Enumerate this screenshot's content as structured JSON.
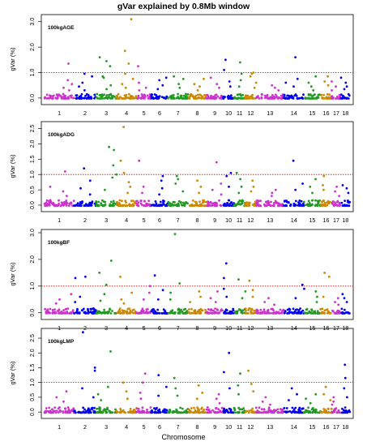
{
  "title": "gVar explained by 0.8Mb window",
  "x_label": "Chromosome",
  "colors": {
    "chromosomes": [
      "#cc33cc",
      "#0000ee",
      "#229922",
      "#cc8800"
    ],
    "threshold_line": "#cc0000",
    "axis": "#000000"
  },
  "chart_data": [
    {
      "type": "scatter",
      "panel_label": "100kgAGE",
      "ylabel": "gVar (%)",
      "xlabel": "",
      "yticks": [
        "0.0",
        "1.0",
        "2.0",
        "3.0"
      ],
      "ylim": [
        -0.1,
        3.15
      ],
      "threshold": 1.0,
      "chromosome_labels": [
        "1",
        "2",
        "3",
        "4",
        "5",
        "6",
        "7",
        "8",
        "9",
        "10",
        "11",
        "12",
        "13",
        "14",
        "15",
        "16",
        "17",
        "18"
      ],
      "peaks": [
        {
          "chr": "1",
          "values": [
            1.35,
            0.7,
            0.55,
            0.4,
            0.3
          ]
        },
        {
          "chr": "2",
          "values": [
            0.95,
            0.85,
            0.6,
            0.45,
            0.3
          ]
        },
        {
          "chr": "3",
          "values": [
            1.6,
            1.45,
            1.25,
            0.85,
            0.8,
            0.5,
            0.35
          ]
        },
        {
          "chr": "4",
          "values": [
            3.1,
            1.85,
            1.35,
            0.95,
            0.75,
            0.55,
            0.4
          ]
        },
        {
          "chr": "5",
          "values": [
            1.25,
            0.6,
            0.4,
            0.3
          ]
        },
        {
          "chr": "6",
          "values": [
            0.8,
            0.7,
            0.5,
            0.35
          ]
        },
        {
          "chr": "7",
          "values": [
            0.85,
            0.75,
            0.55,
            0.4
          ]
        },
        {
          "chr": "8",
          "values": [
            0.75,
            0.55,
            0.45,
            0.3
          ]
        },
        {
          "chr": "9",
          "values": [
            0.8,
            0.55,
            0.4
          ]
        },
        {
          "chr": "10",
          "values": [
            1.5,
            1.1,
            0.65,
            0.45
          ]
        },
        {
          "chr": "11",
          "values": [
            1.4,
            0.95,
            0.7,
            0.45
          ]
        },
        {
          "chr": "12",
          "values": [
            1.0,
            0.95,
            0.85,
            0.6,
            0.4
          ]
        },
        {
          "chr": "13",
          "values": [
            0.5,
            0.4,
            0.3
          ]
        },
        {
          "chr": "14",
          "values": [
            1.6,
            0.75,
            0.6,
            0.45
          ]
        },
        {
          "chr": "15",
          "values": [
            0.85,
            0.6,
            0.45,
            0.3
          ]
        },
        {
          "chr": "16",
          "values": [
            0.85,
            0.65,
            0.5
          ]
        },
        {
          "chr": "17",
          "values": [
            0.65,
            0.45,
            0.3
          ]
        },
        {
          "chr": "18",
          "values": [
            0.8,
            0.6,
            0.45,
            0.35
          ]
        }
      ]
    },
    {
      "type": "scatter",
      "panel_label": "100kgADG",
      "ylabel": "gVar (%)",
      "xlabel": "",
      "yticks": [
        "0.0",
        "0.5",
        "1.0",
        "1.5",
        "2.0",
        "2.5"
      ],
      "ylim": [
        -0.08,
        2.62
      ],
      "threshold": 1.0,
      "chromosome_labels": [
        "1",
        "2",
        "3",
        "4",
        "5",
        "6",
        "7",
        "8",
        "9",
        "10",
        "11",
        "12",
        "13",
        "14",
        "15",
        "16",
        "17",
        "18"
      ],
      "peaks": [
        {
          "chr": "1",
          "values": [
            1.1,
            0.6,
            0.45,
            0.3
          ]
        },
        {
          "chr": "2",
          "values": [
            1.2,
            0.8,
            0.55,
            0.35
          ]
        },
        {
          "chr": "3",
          "values": [
            1.9,
            1.8,
            1.3,
            1.0,
            0.9,
            0.5
          ]
        },
        {
          "chr": "4",
          "values": [
            2.55,
            1.45,
            1.05,
            0.75,
            0.6,
            0.4
          ]
        },
        {
          "chr": "5",
          "values": [
            1.45,
            0.6,
            0.4
          ]
        },
        {
          "chr": "6",
          "values": [
            0.95,
            0.8,
            0.55,
            0.35
          ]
        },
        {
          "chr": "7",
          "values": [
            0.95,
            0.85,
            0.7,
            0.45
          ]
        },
        {
          "chr": "8",
          "values": [
            0.8,
            0.6,
            0.4
          ]
        },
        {
          "chr": "9",
          "values": [
            1.4,
            0.7,
            0.5,
            0.35
          ]
        },
        {
          "chr": "10",
          "values": [
            1.05,
            0.95,
            0.6
          ]
        },
        {
          "chr": "11",
          "values": [
            1.05,
            0.85,
            0.6,
            0.4
          ]
        },
        {
          "chr": "12",
          "values": [
            0.8,
            0.6,
            0.45
          ]
        },
        {
          "chr": "13",
          "values": [
            0.5,
            0.4,
            0.3
          ]
        },
        {
          "chr": "14",
          "values": [
            1.45,
            0.7,
            0.5
          ]
        },
        {
          "chr": "15",
          "values": [
            0.85,
            0.6,
            0.4
          ]
        },
        {
          "chr": "16",
          "values": [
            0.95,
            0.65,
            0.5
          ]
        },
        {
          "chr": "17",
          "values": [
            0.6,
            0.45,
            0.3
          ]
        },
        {
          "chr": "18",
          "values": [
            0.65,
            0.55,
            0.4
          ]
        }
      ]
    },
    {
      "type": "scatter",
      "panel_label": "100kgBF",
      "ylabel": "gVar (%)",
      "xlabel": "",
      "yticks": [
        "0.0",
        "1.0",
        "2.0",
        "3.0"
      ],
      "ylim": [
        -0.1,
        3.0
      ],
      "threshold": 1.0,
      "chromosome_labels": [
        "1",
        "2",
        "3",
        "4",
        "5",
        "6",
        "7",
        "8",
        "9",
        "10",
        "11",
        "12",
        "13",
        "14",
        "15",
        "16",
        "17",
        "18"
      ],
      "peaks": [
        {
          "chr": "1",
          "values": [
            0.7,
            0.5,
            0.35
          ]
        },
        {
          "chr": "2",
          "values": [
            1.35,
            1.3,
            0.6,
            0.4
          ]
        },
        {
          "chr": "3",
          "values": [
            1.95,
            1.5,
            1.05,
            0.7,
            0.45
          ]
        },
        {
          "chr": "4",
          "values": [
            1.35,
            0.75,
            0.5,
            0.35
          ]
        },
        {
          "chr": "5",
          "values": [
            1.0,
            0.75,
            0.5
          ]
        },
        {
          "chr": "6",
          "values": [
            1.4,
            0.85,
            0.5
          ]
        },
        {
          "chr": "7",
          "values": [
            2.95,
            1.1,
            0.75,
            0.5
          ]
        },
        {
          "chr": "8",
          "values": [
            0.8,
            0.6,
            0.4
          ]
        },
        {
          "chr": "9",
          "values": [
            0.8,
            0.55,
            0.4
          ]
        },
        {
          "chr": "10",
          "values": [
            1.85,
            1.3,
            0.9,
            0.6
          ]
        },
        {
          "chr": "11",
          "values": [
            1.25,
            0.8,
            0.55
          ]
        },
        {
          "chr": "12",
          "values": [
            1.2,
            0.85,
            0.6
          ]
        },
        {
          "chr": "13",
          "values": [
            0.55,
            0.4,
            0.3
          ]
        },
        {
          "chr": "14",
          "values": [
            1.05,
            0.9,
            0.55
          ]
        },
        {
          "chr": "15",
          "values": [
            0.8,
            0.6,
            0.4
          ]
        },
        {
          "chr": "16",
          "values": [
            1.5,
            1.35,
            0.6
          ]
        },
        {
          "chr": "17",
          "values": [
            0.55,
            0.4,
            0.3
          ]
        },
        {
          "chr": "18",
          "values": [
            0.7,
            0.55,
            0.4
          ]
        }
      ]
    },
    {
      "type": "scatter",
      "panel_label": "100kgLMP",
      "ylabel": "gVar (%)",
      "xlabel": "",
      "yticks": [
        "0.0",
        "0.5",
        "1.0",
        "1.5",
        "2.0",
        "2.5"
      ],
      "ylim": [
        -0.08,
        2.72
      ],
      "threshold": 1.0,
      "chromosome_labels": [
        "1",
        "2",
        "3",
        "4",
        "5",
        "6",
        "7",
        "8",
        "9",
        "10",
        "11",
        "12",
        "13",
        "14",
        "15",
        "16",
        "17",
        "18"
      ],
      "peaks": [
        {
          "chr": "1",
          "values": [
            0.7,
            0.5,
            0.35
          ]
        },
        {
          "chr": "2",
          "values": [
            2.7,
            1.5,
            1.4,
            0.8,
            0.5
          ]
        },
        {
          "chr": "3",
          "values": [
            2.05,
            0.85,
            0.6,
            0.4
          ]
        },
        {
          "chr": "4",
          "values": [
            1.0,
            0.7,
            0.45
          ]
        },
        {
          "chr": "5",
          "values": [
            1.3,
            1.0,
            0.65,
            0.45
          ]
        },
        {
          "chr": "6",
          "values": [
            1.25,
            0.85,
            0.55
          ]
        },
        {
          "chr": "7",
          "values": [
            1.15,
            0.8,
            0.55
          ]
        },
        {
          "chr": "8",
          "values": [
            0.9,
            0.65,
            0.45
          ]
        },
        {
          "chr": "9",
          "values": [
            0.6,
            0.45,
            0.3
          ]
        },
        {
          "chr": "10",
          "values": [
            2.0,
            1.35,
            0.8
          ]
        },
        {
          "chr": "11",
          "values": [
            1.3,
            0.9,
            0.6
          ]
        },
        {
          "chr": "12",
          "values": [
            1.4,
            0.95,
            0.7
          ]
        },
        {
          "chr": "13",
          "values": [
            0.5,
            0.35,
            0.25
          ]
        },
        {
          "chr": "14",
          "values": [
            0.8,
            0.6,
            0.4
          ]
        },
        {
          "chr": "15",
          "values": [
            0.6,
            0.45,
            0.3
          ]
        },
        {
          "chr": "16",
          "values": [
            0.85,
            0.6,
            0.4
          ]
        },
        {
          "chr": "17",
          "values": [
            0.5,
            0.35,
            0.25
          ]
        },
        {
          "chr": "18",
          "values": [
            1.6,
            1.15,
            0.8,
            0.5
          ]
        }
      ]
    }
  ]
}
